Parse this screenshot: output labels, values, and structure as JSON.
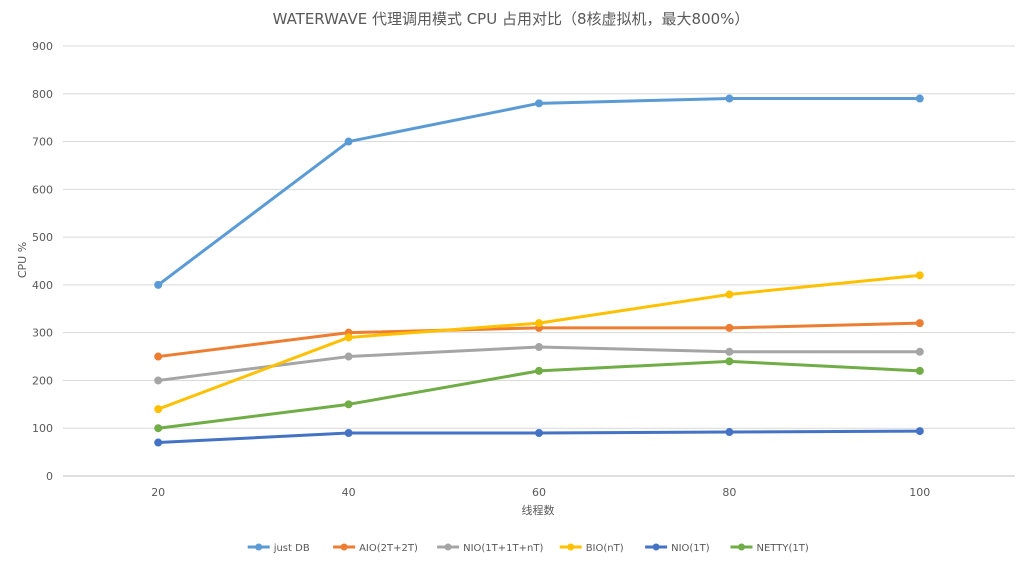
{
  "chart_data": {
    "type": "line",
    "title": "WATERWAVE 代理调用模式 CPU 占用对比（8核虚拟机，最大800%）",
    "xlabel": "线程数",
    "ylabel": "CPU %",
    "x": [
      20,
      40,
      60,
      80,
      100
    ],
    "ylim": [
      0,
      900
    ],
    "y_ticks": [
      0,
      100,
      200,
      300,
      400,
      500,
      600,
      700,
      800,
      900
    ],
    "grid": true,
    "legend_position": "bottom",
    "series": [
      {
        "name": "just DB",
        "color": "#5B9BD5",
        "values": [
          400,
          700,
          780,
          790,
          790
        ]
      },
      {
        "name": "AIO(2T+2T)",
        "color": "#ED7D31",
        "values": [
          250,
          300,
          310,
          310,
          320
        ]
      },
      {
        "name": "NIO(1T+1T+nT)",
        "color": "#A5A5A5",
        "values": [
          200,
          250,
          270,
          260,
          260
        ]
      },
      {
        "name": "BIO(nT)",
        "color": "#FFC000",
        "values": [
          140,
          290,
          320,
          380,
          420
        ]
      },
      {
        "name": "NIO(1T)",
        "color": "#4472C4",
        "values": [
          70,
          90,
          90,
          92,
          94
        ]
      },
      {
        "name": "NETTY(1T)",
        "color": "#70AD47",
        "values": [
          100,
          150,
          220,
          240,
          220
        ]
      }
    ]
  }
}
